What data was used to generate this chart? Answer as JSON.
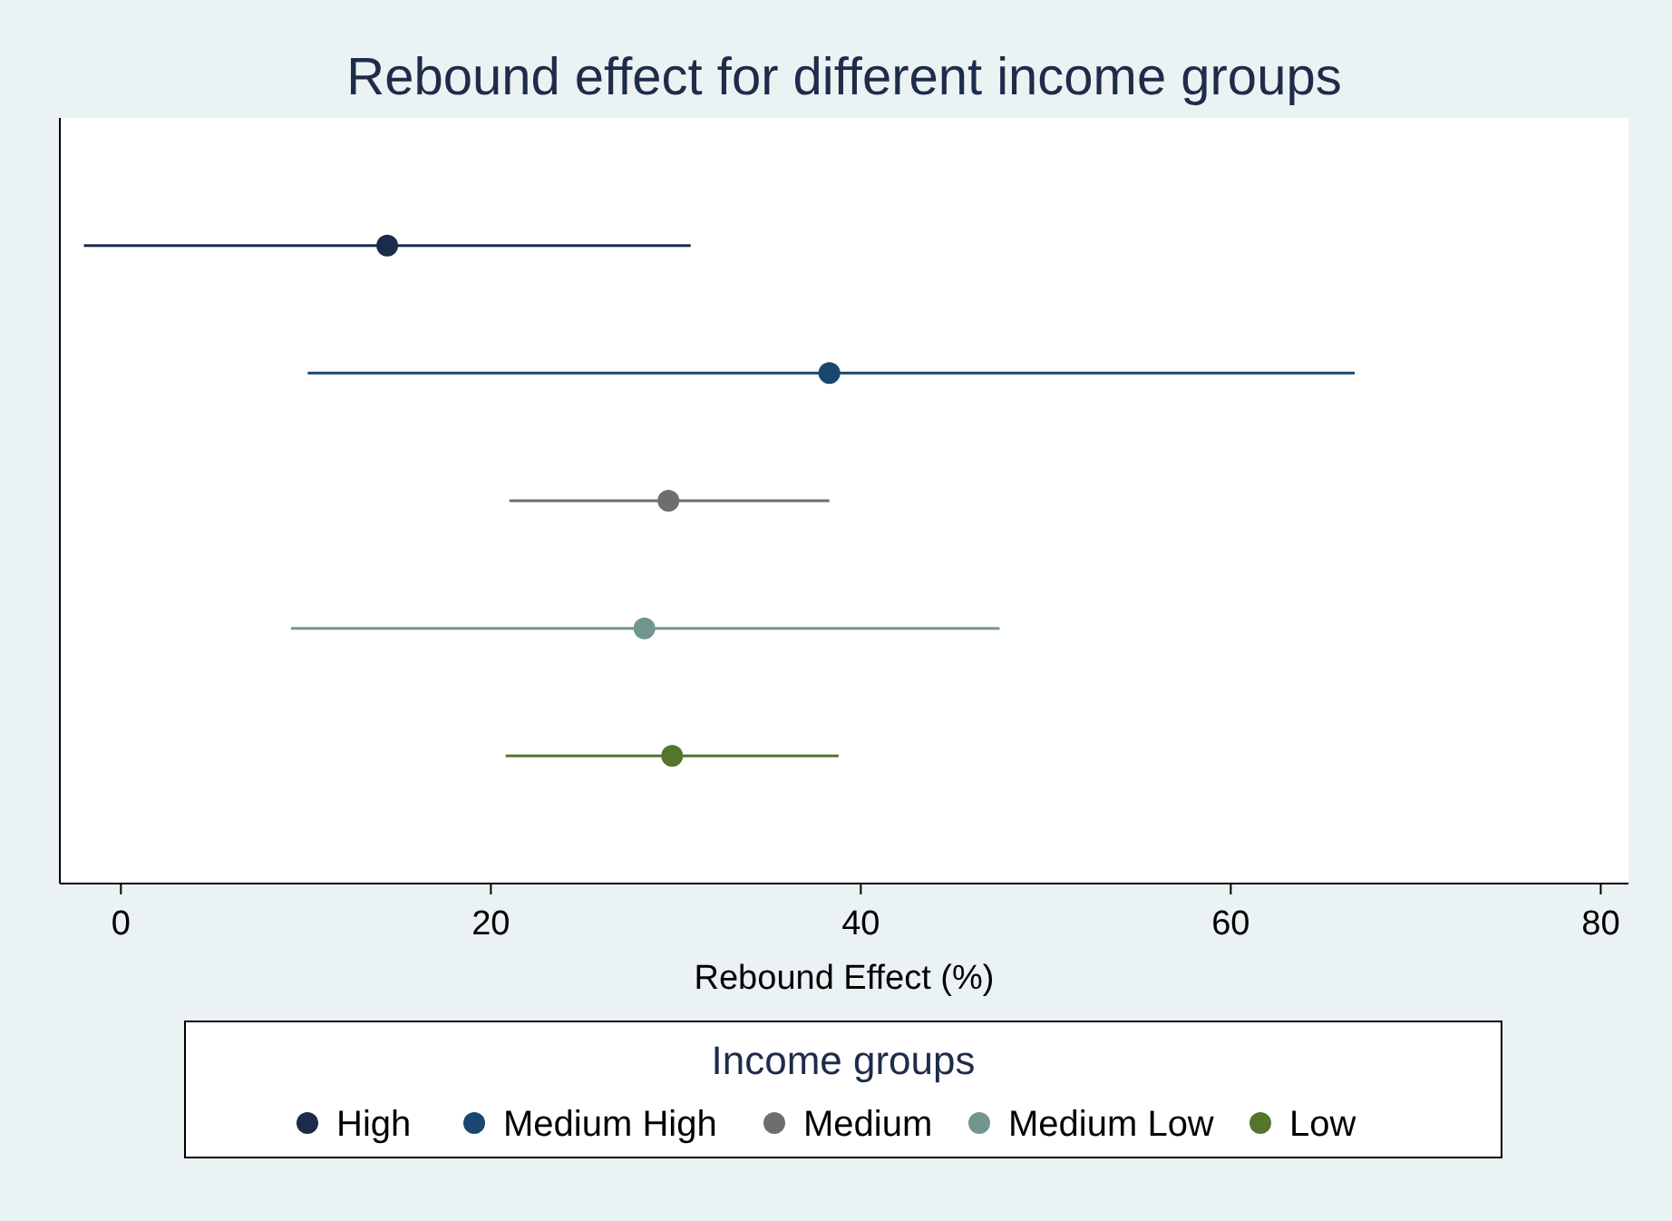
{
  "chart_data": {
    "type": "scatter",
    "orientation": "horizontal",
    "title": "Rebound effect for different income groups",
    "xlabel": "Rebound Effect (%)",
    "legend_title": "Income groups",
    "legend": "bottom",
    "marker": "circle",
    "grid": false,
    "tick_labels": "x",
    "categories": [
      null,
      null,
      null,
      null,
      null
    ],
    "xlim": [
      -3.3,
      81.5
    ],
    "xticks": [
      0,
      20,
      40,
      60,
      80
    ],
    "series": [
      {
        "name": "High",
        "color": "#1a2b4c",
        "values": [
          14.4,
          null,
          null,
          null,
          null
        ],
        "errors": [
          [
            -2.0,
            30.8
          ],
          null,
          null,
          null,
          null
        ]
      },
      {
        "name": "Medium High",
        "color": "#1a476f",
        "values": [
          null,
          38.3,
          null,
          null,
          null
        ],
        "errors": [
          null,
          [
            10.1,
            66.7
          ],
          null,
          null,
          null
        ]
      },
      {
        "name": "Medium",
        "color": "#6e6e6e",
        "values": [
          null,
          null,
          29.6,
          null,
          null
        ],
        "errors": [
          null,
          null,
          [
            21.0,
            38.3
          ],
          null,
          null
        ]
      },
      {
        "name": "Medium Low",
        "color": "#71968f",
        "values": [
          null,
          null,
          null,
          28.3,
          null
        ],
        "errors": [
          null,
          null,
          null,
          [
            9.2,
            47.5
          ],
          null
        ]
      },
      {
        "name": "Low",
        "color": "#55752f",
        "values": [
          null,
          null,
          null,
          null,
          29.8
        ],
        "errors": [
          null,
          null,
          null,
          null,
          [
            20.8,
            38.8
          ]
        ]
      }
    ]
  }
}
